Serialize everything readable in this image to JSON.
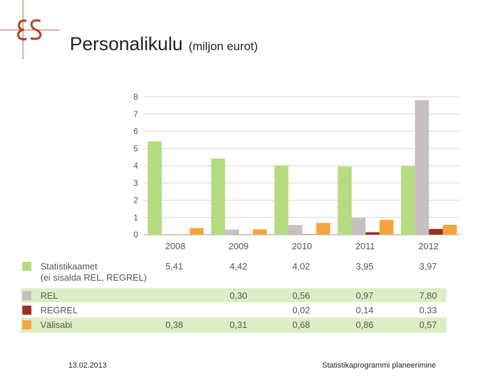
{
  "logo": {
    "icon": "es-logo-icon"
  },
  "title": {
    "main": "Personalikulu",
    "sub": "(miljon eurot)"
  },
  "chart_data": {
    "type": "bar",
    "categories": [
      "2008",
      "2009",
      "2010",
      "2011",
      "2012"
    ],
    "ylim": [
      0,
      8
    ],
    "yticks": [
      0,
      1,
      2,
      3,
      4,
      5,
      6,
      7,
      8
    ],
    "grid": true,
    "series": [
      {
        "name": "Statistikaamet",
        "name_line2": "(ei sisalda REL, REGREL)",
        "color": "#b5dc7f",
        "values": [
          5.41,
          4.42,
          4.02,
          3.95,
          3.97
        ],
        "labels": [
          "5,41",
          "4,42",
          "4,02",
          "3,95",
          "3,97"
        ]
      },
      {
        "name": "REL",
        "color": "#c9bec3",
        "values": [
          null,
          0.3,
          0.56,
          0.97,
          7.8
        ],
        "labels": [
          "",
          "0,30",
          "0,56",
          "0,97",
          "7,80"
        ]
      },
      {
        "name": "REGREL",
        "color": "#a0301e",
        "values": [
          null,
          null,
          0.02,
          0.14,
          0.33
        ],
        "labels": [
          "",
          "",
          "0,02",
          "0,14",
          "0,33"
        ]
      },
      {
        "name": "Välisabi",
        "color": "#f7a43a",
        "values": [
          0.38,
          0.31,
          0.68,
          0.86,
          0.57
        ],
        "labels": [
          "0,38",
          "0,31",
          "0,68",
          "0,86",
          "0,57"
        ]
      }
    ]
  },
  "footer": {
    "date": "13.02.2013",
    "title": "Statistikaprogrammi planeerimine"
  }
}
